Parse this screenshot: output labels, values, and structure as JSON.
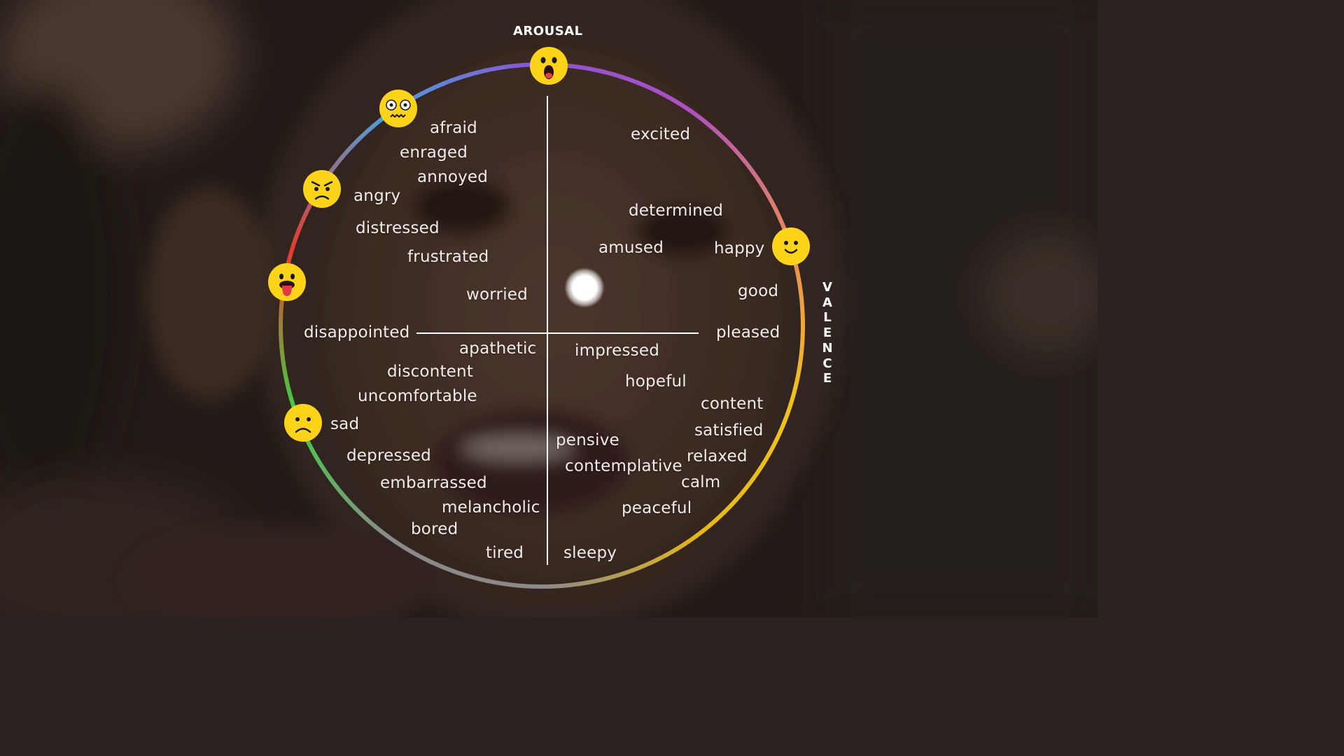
{
  "axes": {
    "arousal_title": "AROUSAL",
    "valence_title": "VALENCE"
  },
  "colors": {
    "wheel_gradient": [
      "#8a54d4",
      "#4aa0dc",
      "#e83a2e",
      "#3ed045",
      "#8a8a8a",
      "#8a8a8a",
      "#e6b814",
      "#f0c21a",
      "#e88a5a",
      "#b050c0"
    ],
    "emoji_yellow": "#ffd31a",
    "text": "#f2ede9"
  },
  "emojis": [
    {
      "name": "surprised-face-icon"
    },
    {
      "name": "fearful-face-icon"
    },
    {
      "name": "angry-face-icon"
    },
    {
      "name": "tongue-out-face-icon"
    },
    {
      "name": "sad-face-icon"
    },
    {
      "name": "happy-face-icon"
    }
  ],
  "emotions": {
    "afraid": "afraid",
    "enraged": "enraged",
    "annoyed": "annoyed",
    "angry": "angry",
    "distressed": "distressed",
    "frustrated": "frustrated",
    "worried": "worried",
    "disappointed": "disappointed",
    "apathetic": "apathetic",
    "discontent": "discontent",
    "uncomfortable": "uncomfortable",
    "sad": "sad",
    "depressed": "depressed",
    "embarrassed": "embarrassed",
    "melancholic": "melancholic",
    "bored": "bored",
    "tired": "tired",
    "excited": "excited",
    "determined": "determined",
    "amused": "amused",
    "happy": "happy",
    "good": "good",
    "pleased": "pleased",
    "impressed": "impressed",
    "hopeful": "hopeful",
    "content": "content",
    "satisfied": "satisfied",
    "relaxed": "relaxed",
    "calm": "calm",
    "pensive": "pensive",
    "contemplative": "contemplative",
    "peaceful": "peaceful",
    "sleepy": "sleepy"
  }
}
